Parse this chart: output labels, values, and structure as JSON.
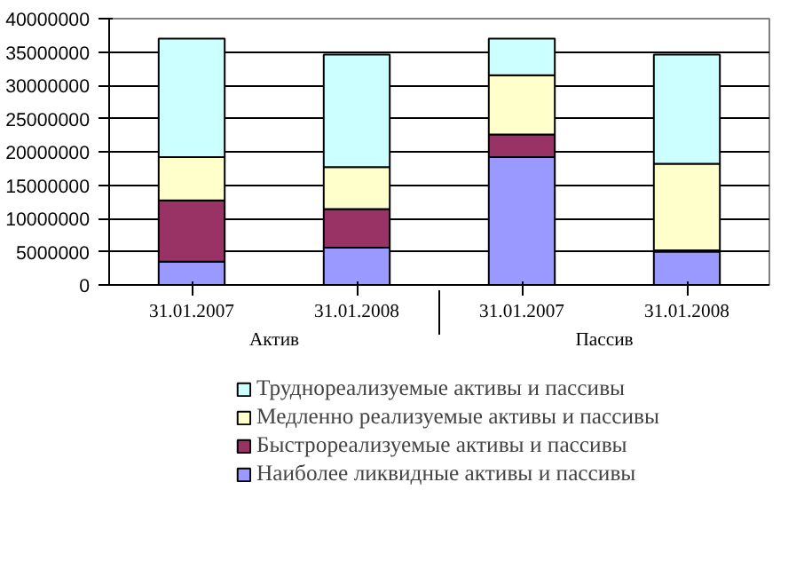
{
  "chart_data": {
    "type": "bar",
    "stacked": true,
    "categories": [
      "31.01.2007",
      "31.01.2008",
      "31.01.2007",
      "31.01.2008"
    ],
    "annotations": [
      "Актив",
      "Пассив"
    ],
    "series": [
      {
        "name": "Наиболее ликвидные активы и пассивы",
        "color": "#9999ff",
        "values": [
          3500000,
          5600000,
          19200000,
          5000000
        ]
      },
      {
        "name": "Быстрореализуемые активы и пассивы",
        "color": "#993366",
        "values": [
          9200000,
          5800000,
          3400000,
          200000
        ]
      },
      {
        "name": "Медленно реализуемые активы и пассивы",
        "color": "#ffffcc",
        "values": [
          6500000,
          6300000,
          8900000,
          13000000
        ]
      },
      {
        "name": "Труднореализуемые активы и пассивы",
        "color": "#ccffff",
        "values": [
          17800000,
          16900000,
          5500000,
          16400000
        ]
      }
    ],
    "ylim": [
      0,
      40000000
    ],
    "yticks": [
      0,
      5000000,
      10000000,
      15000000,
      20000000,
      25000000,
      30000000,
      35000000,
      40000000
    ],
    "grid": "y",
    "legend": "bottom"
  }
}
